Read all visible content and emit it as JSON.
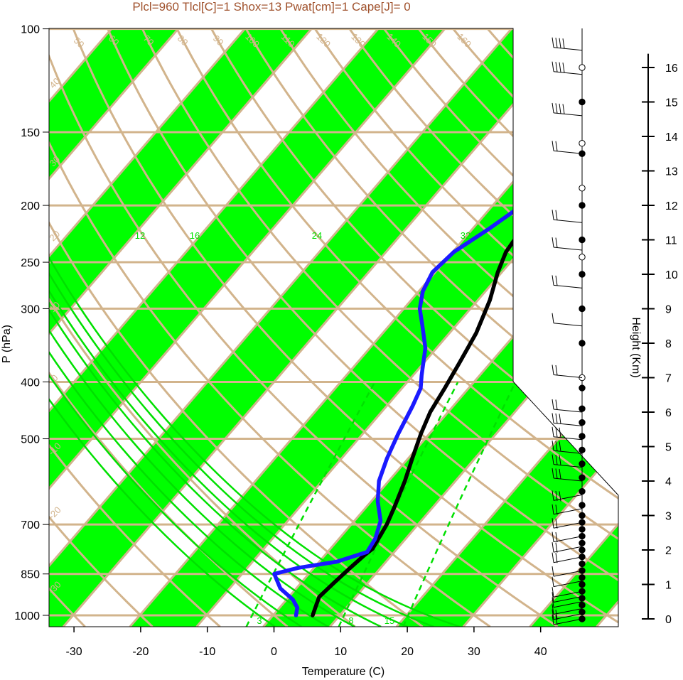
{
  "title": "Plcl=960 Tlcl[C]=1 Shox=13 Pwat[cm]=1 Cape[J]= 0",
  "colors": {
    "band": "#00ff00",
    "iso": "#d2b48c",
    "temp": "#000000",
    "dew": "#1a1aff",
    "moist": "#00e000",
    "titleText": "#a0522d"
  },
  "chart_data": {
    "type": "line",
    "xlabel": "Temperature (C)",
    "ylabel": "P (hPa)",
    "y2label": "Height (Km)",
    "xlim": [
      -34,
      52
    ],
    "ylim": [
      1050,
      100
    ],
    "x_ticks": [
      -30,
      -20,
      -10,
      0,
      10,
      20,
      30,
      40
    ],
    "pressure_ticks": [
      100,
      150,
      200,
      250,
      300,
      400,
      500,
      700,
      850,
      1000
    ],
    "height_ticks_km": [
      0,
      1,
      2,
      3,
      4,
      5,
      6,
      7,
      8,
      9,
      10,
      11,
      12,
      13,
      14,
      15,
      16
    ],
    "dry_adiabat_labels": [
      "50",
      "60",
      "70",
      "80",
      "90",
      "100",
      "110",
      "120",
      "130",
      "140",
      "150",
      "160"
    ],
    "isotherm_labels": [
      "40",
      "30",
      "20",
      "10",
      "0",
      "-10",
      "-20",
      "-30",
      "10",
      "20",
      "30",
      "-30",
      "-20",
      "-10",
      "0",
      "10",
      "20",
      "30"
    ],
    "moist_adiabat_labels": [
      "12",
      "16",
      "24",
      "32"
    ],
    "mixing_ratio_labels": [
      "3",
      "8",
      "15"
    ],
    "series": [
      {
        "name": "Temperature",
        "points": [
          [
            5.8,
            1000
          ],
          [
            5.2,
            970
          ],
          [
            4.4,
            930
          ],
          [
            4.8,
            880
          ],
          [
            5.3,
            830
          ],
          [
            5.8,
            790
          ],
          [
            6.2,
            770
          ],
          [
            5.2,
            700
          ],
          [
            4,
            650
          ],
          [
            2.3,
            590
          ],
          [
            0.5,
            540
          ],
          [
            -1.4,
            490
          ],
          [
            -2.8,
            450
          ],
          [
            -3.7,
            410
          ],
          [
            -4.8,
            370
          ],
          [
            -6.1,
            330
          ],
          [
            -8.3,
            290
          ],
          [
            -10.7,
            260
          ],
          [
            -12.1,
            240
          ],
          [
            -12.5,
            225
          ],
          [
            -12.2,
            210
          ],
          [
            -11.6,
            200
          ],
          [
            -9.5,
            190
          ],
          [
            -6.3,
            175
          ],
          [
            -2.3,
            160
          ],
          [
            1.4,
            150
          ],
          [
            4,
            140
          ],
          [
            6.8,
            130
          ],
          [
            9.2,
            120
          ],
          [
            11.6,
            112
          ],
          [
            13.4,
            106
          ],
          [
            15,
            100
          ]
        ]
      },
      {
        "name": "Dewpoint",
        "points": [
          [
            3.3,
            1000
          ],
          [
            2.5,
            970
          ],
          [
            0.8,
            940
          ],
          [
            -2.5,
            900
          ],
          [
            -5.3,
            850
          ],
          [
            -2.5,
            830
          ],
          [
            2.5,
            810
          ],
          [
            5.8,
            780
          ],
          [
            5.3,
            740
          ],
          [
            3.8,
            690
          ],
          [
            0.9,
            640
          ],
          [
            -1.6,
            590
          ],
          [
            -3.3,
            540
          ],
          [
            -4.8,
            490
          ],
          [
            -6.2,
            440
          ],
          [
            -7.3,
            410
          ],
          [
            -8.8,
            390
          ],
          [
            -11.8,
            350
          ],
          [
            -15.2,
            320
          ],
          [
            -17.7,
            300
          ],
          [
            -19.5,
            280
          ],
          [
            -20.5,
            260
          ],
          [
            -19.9,
            240
          ],
          [
            -17.7,
            220
          ],
          [
            -15.7,
            200
          ],
          [
            -14.7,
            180
          ],
          [
            -15.7,
            170
          ],
          [
            -17,
            150
          ],
          [
            -16.6,
            147
          ],
          [
            -13.2,
            130
          ],
          [
            -9.5,
            115
          ],
          [
            -5.5,
            100
          ]
        ]
      }
    ],
    "wind_barbs": [
      {
        "h": 0,
        "speed": 15
      },
      {
        "h": 0.15,
        "speed": 15
      },
      {
        "h": 0.3,
        "speed": 10
      },
      {
        "h": 0.5,
        "speed": 10
      },
      {
        "h": 0.65,
        "speed": 10
      },
      {
        "h": 0.8,
        "speed": 10
      },
      {
        "h": 1.1,
        "speed": 10
      },
      {
        "h": 1.4,
        "speed": 10
      },
      {
        "h": 1.8,
        "speed": 15
      },
      {
        "h": 2.1,
        "speed": 15
      },
      {
        "h": 2.4,
        "speed": 15
      },
      {
        "h": 2.8,
        "speed": 15
      },
      {
        "h": 3.2,
        "speed": 20
      },
      {
        "h": 3.6,
        "speed": 25
      },
      {
        "h": 4.0,
        "speed": 25
      },
      {
        "h": 4.4,
        "speed": 25
      },
      {
        "h": 4.8,
        "speed": 25
      },
      {
        "h": 5.2,
        "speed": 25
      },
      {
        "h": 5.6,
        "speed": 25
      },
      {
        "h": 6.0,
        "speed": 20
      },
      {
        "h": 7.0,
        "speed": 15
      },
      {
        "h": 8.5,
        "speed": 10
      },
      {
        "h": 9.6,
        "speed": 15
      },
      {
        "h": 10.7,
        "speed": 15
      },
      {
        "h": 11.5,
        "speed": 15
      },
      {
        "h": 13.5,
        "speed": 20
      },
      {
        "h": 14.6,
        "speed": 40
      },
      {
        "h": 15.8,
        "speed": 40
      },
      {
        "h": 16.5,
        "speed": 40
      }
    ],
    "hodo_dots": [
      0,
      0.2,
      0.4,
      0.6,
      0.8,
      1.0,
      1.2,
      1.4,
      1.6,
      1.8,
      2.0,
      2.2,
      2.4,
      2.6,
      2.8,
      3.0,
      3.3,
      3.7,
      4.1,
      4.5,
      4.9,
      5.3,
      5.7,
      6.1,
      6.7,
      7.0,
      8.0,
      9.0,
      10.0,
      10.5,
      11.0,
      12.0,
      12.5,
      13.5,
      13.8,
      15.0,
      16.0
    ],
    "hodo_open": [
      7.0,
      10.5,
      12.5,
      13.8,
      16.0
    ]
  }
}
